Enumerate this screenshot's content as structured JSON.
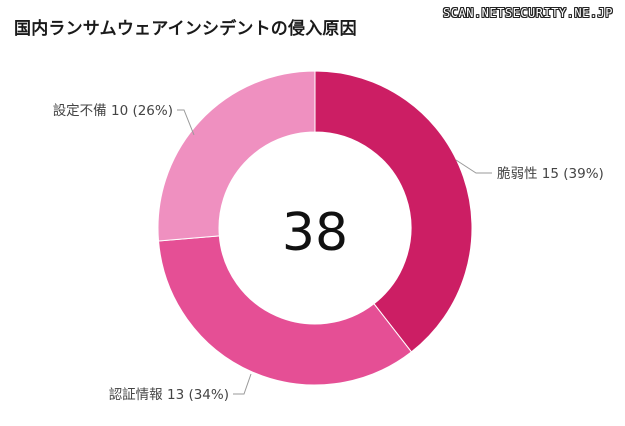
{
  "title": "国内ランサムウェアインシデントの侵入原因",
  "watermark": "SCAN.NETSECURITY.NE.JP",
  "chart_data": {
    "type": "pie",
    "variant": "donut",
    "total_label": "38",
    "slices": [
      {
        "name": "脆弱性",
        "value": 15,
        "percent": "39%",
        "color": "#cc1e64"
      },
      {
        "name": "認証情報",
        "value": 13,
        "percent": "34%",
        "color": "#e54f95"
      },
      {
        "name": "設定不備",
        "value": 10,
        "percent": "26%",
        "color": "#ef90c0"
      }
    ],
    "labels": [
      "脆弱性 15 (39%)",
      "認証情報 13 (34%)",
      "設定不備 10 (26%)"
    ]
  }
}
